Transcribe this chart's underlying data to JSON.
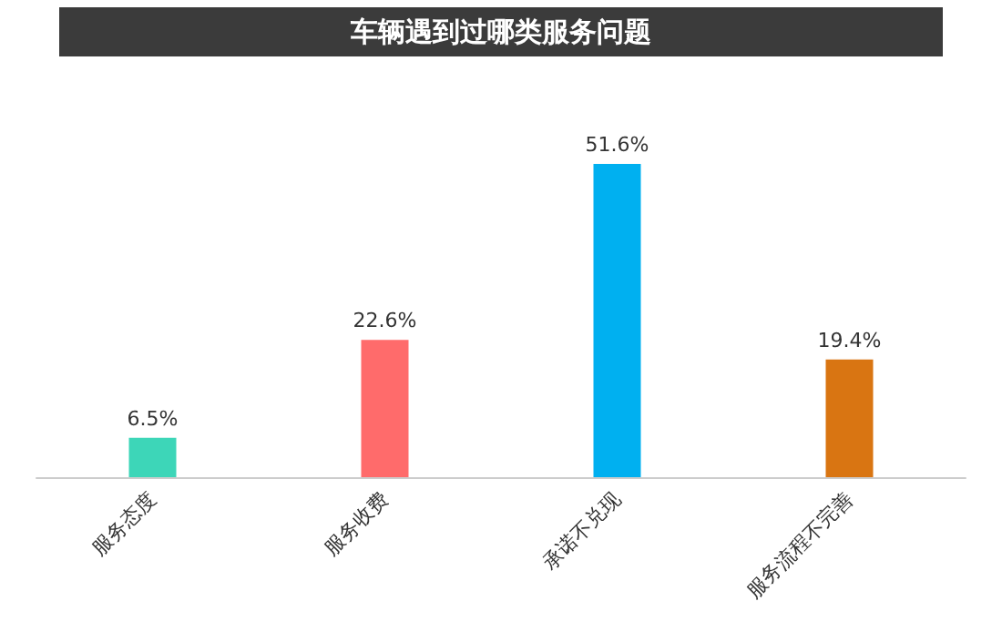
{
  "chart_data": {
    "type": "bar",
    "title": "车辆遇到过哪类服务问题",
    "categories": [
      "服务态度",
      "服务收费",
      "承诺不兑现",
      "服务流程不完善"
    ],
    "values": [
      6.5,
      22.6,
      51.6,
      19.4
    ],
    "colors": [
      "#3dd6b8",
      "#ff6b6b",
      "#00b0f0",
      "#d97512"
    ],
    "value_labels": [
      "6.5%",
      "22.6%",
      "51.6%",
      "19.4%"
    ]
  }
}
